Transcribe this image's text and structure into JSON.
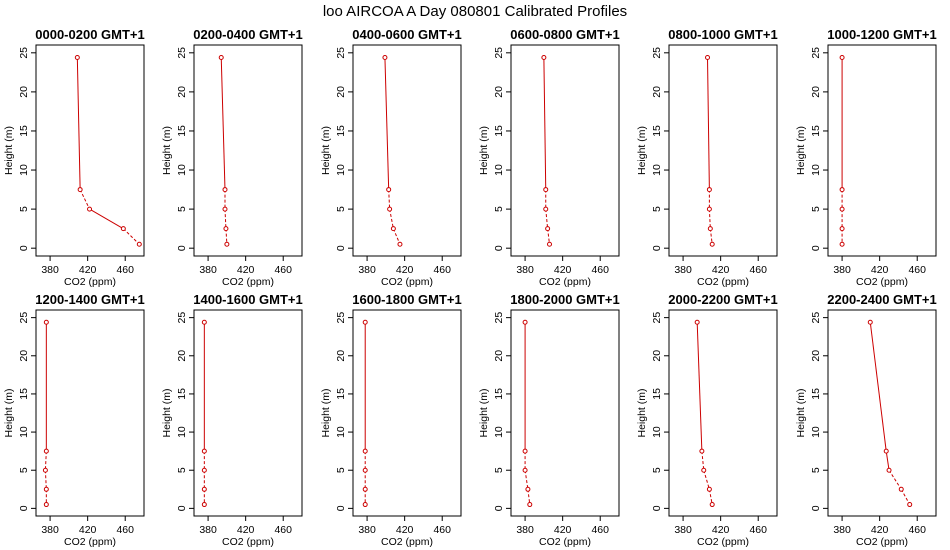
{
  "figure": {
    "title": "loo AIRCOA A  Day 080801  Calibrated Profiles"
  },
  "style": {
    "line_color": "#cc0000",
    "axis_color": "#000000",
    "background": "#ffffff"
  },
  "chart_data": [
    {
      "type": "line",
      "title": "0000-0200 GMT+1",
      "xlabel": "CO2 (ppm)",
      "ylabel": "Height (m)",
      "xlim": [
        365,
        480
      ],
      "ylim": [
        -1,
        26
      ],
      "xticks": [
        380,
        420,
        460
      ],
      "yticks": [
        0,
        5,
        10,
        15,
        20,
        25
      ],
      "series": [
        {
          "x": [
            409,
            412,
            422,
            458,
            475
          ],
          "y": [
            24.4,
            7.5,
            5.0,
            2.5,
            0.5
          ],
          "line_style": [
            "solid",
            "dashed",
            "solid",
            "dashed"
          ]
        }
      ]
    },
    {
      "type": "line",
      "title": "0200-0400 GMT+1",
      "xlabel": "CO2 (ppm)",
      "ylabel": "Height (m)",
      "xlim": [
        365,
        480
      ],
      "ylim": [
        -1,
        26
      ],
      "xticks": [
        380,
        420,
        460
      ],
      "yticks": [
        0,
        5,
        10,
        15,
        20,
        25
      ],
      "series": [
        {
          "x": [
            394,
            398,
            398,
            399,
            400
          ],
          "y": [
            24.4,
            7.5,
            5.0,
            2.5,
            0.5
          ],
          "line_style": [
            "solid",
            "dashed",
            "dashed",
            "dashed"
          ]
        }
      ]
    },
    {
      "type": "line",
      "title": "0400-0600 GMT+1",
      "xlabel": "CO2 (ppm)",
      "ylabel": "Height (m)",
      "xlim": [
        365,
        480
      ],
      "ylim": [
        -1,
        26
      ],
      "xticks": [
        380,
        420,
        460
      ],
      "yticks": [
        0,
        5,
        10,
        15,
        20,
        25
      ],
      "series": [
        {
          "x": [
            399,
            403,
            404,
            408,
            415
          ],
          "y": [
            24.4,
            7.5,
            5.0,
            2.5,
            0.5
          ],
          "line_style": [
            "solid",
            "dashed",
            "dashed",
            "dashed"
          ]
        }
      ]
    },
    {
      "type": "line",
      "title": "0600-0800 GMT+1",
      "xlabel": "CO2 (ppm)",
      "ylabel": "Height (m)",
      "xlim": [
        365,
        480
      ],
      "ylim": [
        -1,
        26
      ],
      "xticks": [
        380,
        420,
        460
      ],
      "yticks": [
        0,
        5,
        10,
        15,
        20,
        25
      ],
      "series": [
        {
          "x": [
            400,
            402,
            402,
            404,
            406
          ],
          "y": [
            24.4,
            7.5,
            5.0,
            2.5,
            0.5
          ],
          "line_style": [
            "solid",
            "dashed",
            "dashed",
            "dashed"
          ]
        }
      ]
    },
    {
      "type": "line",
      "title": "0800-1000 GMT+1",
      "xlabel": "CO2 (ppm)",
      "ylabel": "Height (m)",
      "xlim": [
        365,
        480
      ],
      "ylim": [
        -1,
        26
      ],
      "xticks": [
        380,
        420,
        460
      ],
      "yticks": [
        0,
        5,
        10,
        15,
        20,
        25
      ],
      "series": [
        {
          "x": [
            406,
            408,
            408,
            409,
            411
          ],
          "y": [
            24.4,
            7.5,
            5.0,
            2.5,
            0.5
          ],
          "line_style": [
            "solid",
            "dashed",
            "dashed",
            "dashed"
          ]
        }
      ]
    },
    {
      "type": "line",
      "title": "1000-1200 GMT+1",
      "xlabel": "CO2 (ppm)",
      "ylabel": "Height (m)",
      "xlim": [
        365,
        480
      ],
      "ylim": [
        -1,
        26
      ],
      "xticks": [
        380,
        420,
        460
      ],
      "yticks": [
        0,
        5,
        10,
        15,
        20,
        25
      ],
      "series": [
        {
          "x": [
            380,
            380,
            380,
            380,
            380
          ],
          "y": [
            24.4,
            7.5,
            5.0,
            2.5,
            0.5
          ],
          "line_style": [
            "solid",
            "dashed",
            "dashed",
            "dashed"
          ]
        }
      ]
    },
    {
      "type": "line",
      "title": "1200-1400 GMT+1",
      "xlabel": "CO2 (ppm)",
      "ylabel": "Height (m)",
      "xlim": [
        365,
        480
      ],
      "ylim": [
        -1,
        26
      ],
      "xticks": [
        380,
        420,
        460
      ],
      "yticks": [
        0,
        5,
        10,
        15,
        20,
        25
      ],
      "series": [
        {
          "x": [
            376,
            376,
            375,
            376,
            376
          ],
          "y": [
            24.4,
            7.5,
            5.0,
            2.5,
            0.5
          ],
          "line_style": [
            "solid",
            "dashed",
            "dashed",
            "dashed"
          ]
        }
      ]
    },
    {
      "type": "line",
      "title": "1400-1600 GMT+1",
      "xlabel": "CO2 (ppm)",
      "ylabel": "Height (m)",
      "xlim": [
        365,
        480
      ],
      "ylim": [
        -1,
        26
      ],
      "xticks": [
        380,
        420,
        460
      ],
      "yticks": [
        0,
        5,
        10,
        15,
        20,
        25
      ],
      "series": [
        {
          "x": [
            376,
            376,
            376,
            376,
            376
          ],
          "y": [
            24.4,
            7.5,
            5.0,
            2.5,
            0.5
          ],
          "line_style": [
            "solid",
            "dashed",
            "dashed",
            "dashed"
          ]
        }
      ]
    },
    {
      "type": "line",
      "title": "1600-1800 GMT+1",
      "xlabel": "CO2 (ppm)",
      "ylabel": "Height (m)",
      "xlim": [
        365,
        480
      ],
      "ylim": [
        -1,
        26
      ],
      "xticks": [
        380,
        420,
        460
      ],
      "yticks": [
        0,
        5,
        10,
        15,
        20,
        25
      ],
      "series": [
        {
          "x": [
            378,
            378,
            378,
            378,
            378
          ],
          "y": [
            24.4,
            7.5,
            5.0,
            2.5,
            0.5
          ],
          "line_style": [
            "solid",
            "dashed",
            "dashed",
            "dashed"
          ]
        }
      ]
    },
    {
      "type": "line",
      "title": "1800-2000 GMT+1",
      "xlabel": "CO2 (ppm)",
      "ylabel": "Height (m)",
      "xlim": [
        365,
        480
      ],
      "ylim": [
        -1,
        26
      ],
      "xticks": [
        380,
        420,
        460
      ],
      "yticks": [
        0,
        5,
        10,
        15,
        20,
        25
      ],
      "series": [
        {
          "x": [
            380,
            380,
            380,
            383,
            385
          ],
          "y": [
            24.4,
            7.5,
            5.0,
            2.5,
            0.5
          ],
          "line_style": [
            "solid",
            "dashed",
            "dashed",
            "dashed"
          ]
        }
      ]
    },
    {
      "type": "line",
      "title": "2000-2200 GMT+1",
      "xlabel": "CO2 (ppm)",
      "ylabel": "Height (m)",
      "xlim": [
        365,
        480
      ],
      "ylim": [
        -1,
        26
      ],
      "xticks": [
        380,
        420,
        460
      ],
      "yticks": [
        0,
        5,
        10,
        15,
        20,
        25
      ],
      "series": [
        {
          "x": [
            395,
            400,
            402,
            408,
            411
          ],
          "y": [
            24.4,
            7.5,
            5.0,
            2.5,
            0.5
          ],
          "line_style": [
            "solid",
            "dashed",
            "dashed",
            "dashed"
          ]
        }
      ]
    },
    {
      "type": "line",
      "title": "2200-2400 GMT+1",
      "xlabel": "CO2 (ppm)",
      "ylabel": "Height (m)",
      "xlim": [
        365,
        480
      ],
      "ylim": [
        -1,
        26
      ],
      "xticks": [
        380,
        420,
        460
      ],
      "yticks": [
        0,
        5,
        10,
        15,
        20,
        25
      ],
      "series": [
        {
          "x": [
            410,
            427,
            430,
            443,
            452
          ],
          "y": [
            24.4,
            7.5,
            5.0,
            2.5,
            0.5
          ],
          "line_style": [
            "solid",
            "solid",
            "dashed",
            "dashed"
          ]
        }
      ]
    }
  ]
}
